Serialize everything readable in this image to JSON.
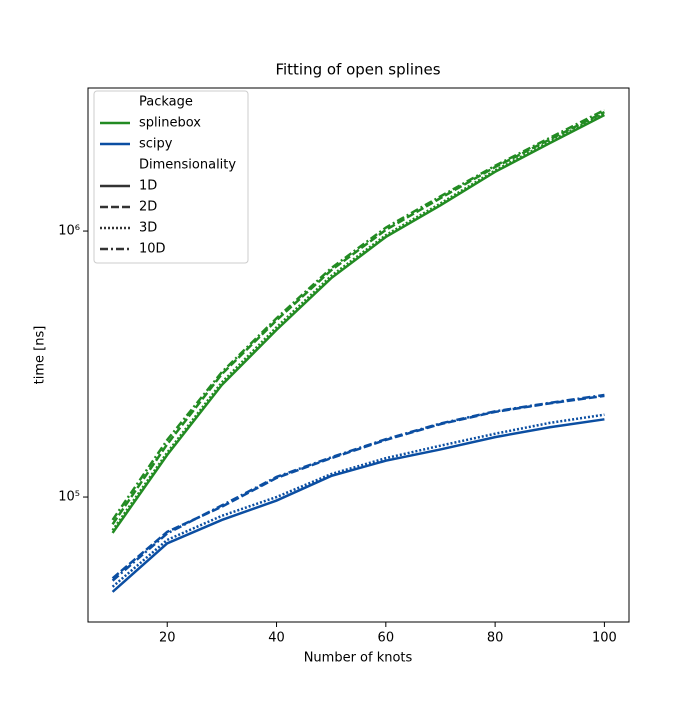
{
  "chart_data": {
    "type": "line",
    "title": "Fitting of open splines",
    "x_label": "Number of knots",
    "y_label": "time [ns]",
    "x": [
      10,
      20,
      30,
      40,
      50,
      60,
      70,
      80,
      90,
      100
    ],
    "xlim": [
      5.5,
      104.5
    ],
    "xticks": [
      20,
      40,
      60,
      80,
      100
    ],
    "ylim": [
      33900,
      3450000
    ],
    "log_y": true,
    "yticks": [
      {
        "value": 100000,
        "label": "10⁵"
      },
      {
        "value": 1000000,
        "label": "10⁶"
      }
    ],
    "legend_position": "upper left",
    "hue": {
      "title": "Package",
      "levels": [
        {
          "name": "splinebox",
          "color": "#228b22"
        },
        {
          "name": "scipy",
          "color": "#0b4ea2"
        }
      ]
    },
    "style": {
      "title": "Dimensionality",
      "levels": [
        {
          "name": "1D",
          "dash": "none"
        },
        {
          "name": "2D",
          "dash": "8,3"
        },
        {
          "name": "3D",
          "dash": "2,2"
        },
        {
          "name": "10D",
          "dash": "8,3,2,3"
        }
      ]
    },
    "series": [
      {
        "hue": 0,
        "style": 0,
        "values": [
          73300,
          144000,
          264000,
          425000,
          665000,
          950000,
          1250000,
          1670000,
          2140000,
          2730000
        ]
      },
      {
        "hue": 0,
        "style": 1,
        "values": [
          79000,
          158000,
          290000,
          462000,
          712000,
          1010000,
          1330000,
          1740000,
          2210000,
          2800000
        ]
      },
      {
        "hue": 0,
        "style": 2,
        "values": [
          75000,
          147000,
          270000,
          435000,
          678000,
          965000,
          1270000,
          1690000,
          2170000,
          2770000
        ]
      },
      {
        "hue": 0,
        "style": 3,
        "values": [
          82000,
          164000,
          295000,
          470000,
          725000,
          1030000,
          1350000,
          1760000,
          2240000,
          2850000
        ]
      },
      {
        "hue": 1,
        "style": 0,
        "values": [
          44000,
          67000,
          82000,
          97000,
          120000,
          137000,
          151000,
          168000,
          183000,
          196000
        ]
      },
      {
        "hue": 1,
        "style": 1,
        "values": [
          49500,
          74000,
          92000,
          118000,
          140000,
          164000,
          188000,
          209000,
          225000,
          240000
        ]
      },
      {
        "hue": 1,
        "style": 2,
        "values": [
          46000,
          69000,
          85000,
          100000,
          122000,
          140000,
          156000,
          173000,
          190000,
          204000
        ]
      },
      {
        "hue": 1,
        "style": 3,
        "values": [
          48500,
          73000,
          93000,
          119000,
          141000,
          165000,
          189000,
          210000,
          226000,
          242000
        ]
      }
    ]
  }
}
